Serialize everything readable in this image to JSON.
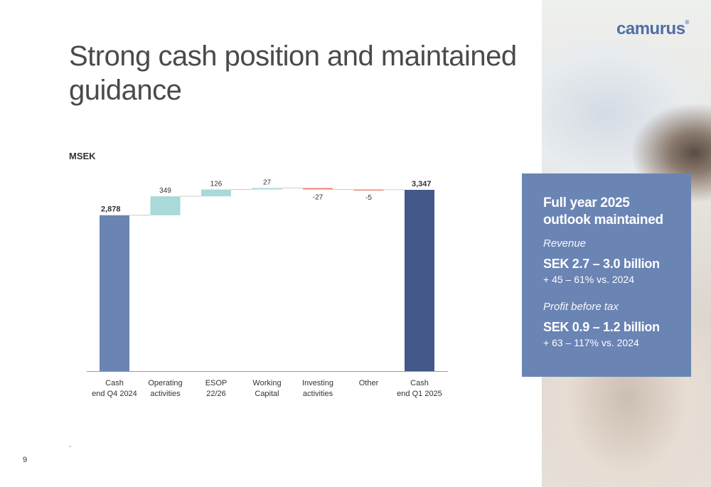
{
  "slide": {
    "title": "Strong cash position and maintained guidance",
    "unit_label": "MSEK",
    "page_number": "9",
    "footnote": ","
  },
  "brand": {
    "logo_text": "camurus",
    "logo_mark": "®",
    "accent": "#6a84b4"
  },
  "outlook": {
    "heading": "Full year 2025 outlook maintained",
    "revenue_label": "Revenue",
    "revenue_value": "SEK 2.7 – 3.0 billion",
    "revenue_sub": "+ 45 – 61% vs. 2024",
    "profit_label": "Profit before tax",
    "profit_value": "SEK 0.9 – 1.2 billion",
    "profit_sub": "+ 63 – 117% vs. 2024"
  },
  "chart_data": {
    "type": "bar",
    "subtype": "waterfall",
    "unit": "MSEK",
    "categories": [
      [
        "Cash",
        "end Q4 2024"
      ],
      [
        "Operating",
        "activities"
      ],
      [
        "ESOP",
        "22/26"
      ],
      [
        "Working",
        "Capital"
      ],
      [
        "Investing",
        "activities"
      ],
      [
        "Other"
      ],
      [
        "Cash",
        "end Q1 2025"
      ]
    ],
    "values": [
      2878,
      349,
      126,
      27,
      -27,
      -5,
      3347
    ],
    "value_labels": [
      "2,878",
      "349",
      "126",
      "27",
      "-27",
      "-5",
      "3,347"
    ],
    "kinds": [
      "total",
      "delta",
      "delta",
      "delta",
      "delta",
      "delta",
      "total"
    ],
    "colors": {
      "start_total": "#6a84b4",
      "end_total": "#44598a",
      "increase": "#a9d9d9",
      "decrease": "#ee8475",
      "baseline": "#999999",
      "connector": "#cccccc"
    }
  }
}
